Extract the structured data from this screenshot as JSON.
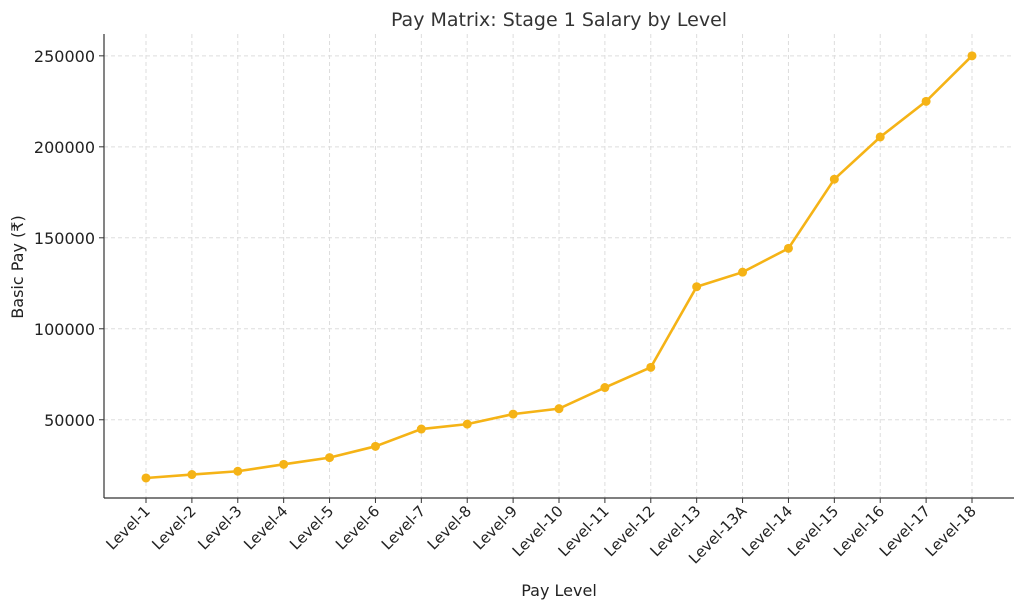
{
  "chart_data": {
    "type": "line",
    "title": "Pay Matrix: Stage 1 Salary by Level",
    "xlabel": "Pay Level",
    "ylabel": "Basic Pay (₹)",
    "categories": [
      "Level-1",
      "Level-2",
      "Level-3",
      "Level-4",
      "Level-5",
      "Level-6",
      "Level-7",
      "Level-8",
      "Level-9",
      "Level-10",
      "Level-11",
      "Level-12",
      "Level-13",
      "Level-13A",
      "Level-14",
      "Level-15",
      "Level-16",
      "Level-17",
      "Level-18"
    ],
    "values": [
      18000,
      19900,
      21700,
      25500,
      29200,
      35400,
      44900,
      47600,
      53100,
      56100,
      67700,
      78800,
      123100,
      131100,
      144200,
      182200,
      205400,
      225000,
      250000
    ],
    "yticks": [
      50000,
      100000,
      150000,
      200000,
      250000
    ],
    "ylim": [
      7000,
      262000
    ],
    "grid": true,
    "color": "#F5B316",
    "marker": "circle"
  }
}
